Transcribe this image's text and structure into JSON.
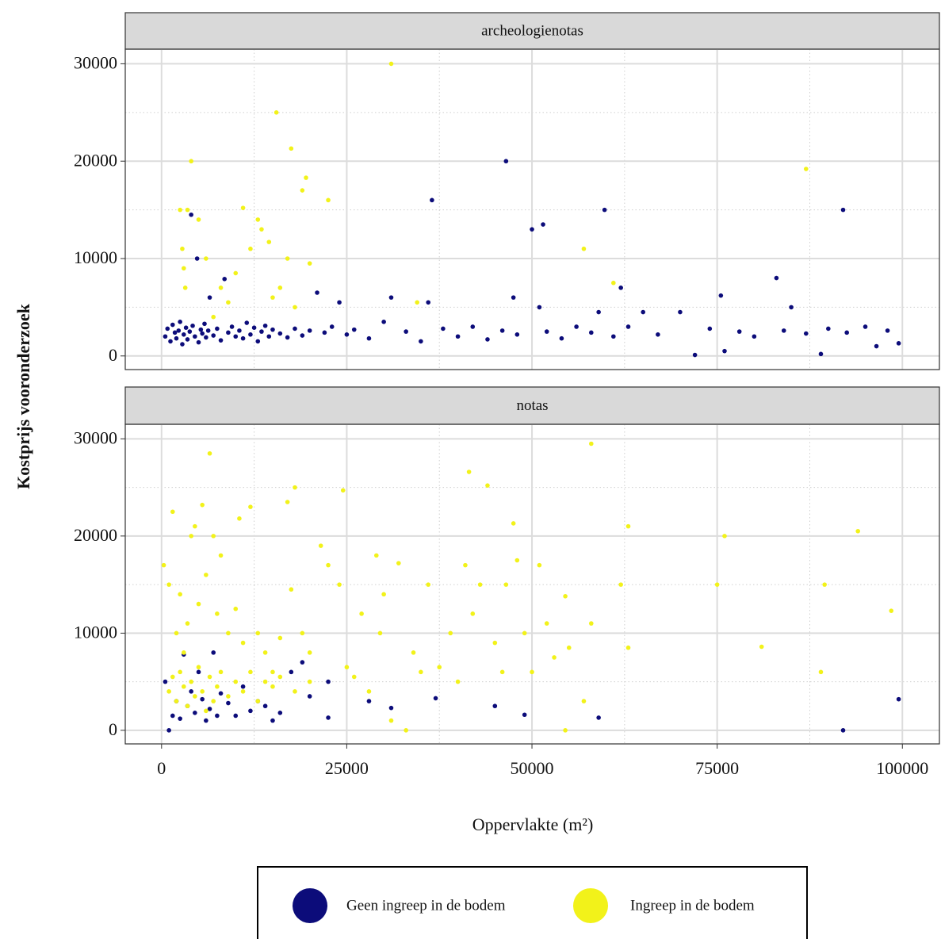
{
  "chart_data": [
    {
      "type": "scatter",
      "title": "archeologienotas",
      "ylabel": "Kostprijs vooronderzoek",
      "xlim": [
        -4900,
        105000
      ],
      "xticks": [
        0,
        25000,
        50000,
        75000,
        100000
      ],
      "ylim": [
        -1400,
        31500
      ],
      "yticks": [
        0,
        10000,
        20000,
        30000
      ],
      "grid": true,
      "minor_grid": true,
      "series": [
        {
          "name": "Geen ingreep in de bodem",
          "color": "#0c0c7a",
          "x": [
            500,
            800,
            1200,
            1500,
            1800,
            2000,
            2300,
            2500,
            2800,
            3000,
            3300,
            3500,
            3800,
            4000,
            4200,
            4500,
            4800,
            5000,
            5300,
            5500,
            5800,
            6000,
            6300,
            6500,
            7000,
            7500,
            8000,
            8500,
            9000,
            9500,
            10000,
            10500,
            11000,
            11500,
            12000,
            12500,
            13000,
            13500,
            14000,
            14500,
            15000,
            16000,
            17000,
            18000,
            19000,
            20000,
            21000,
            22000,
            23000,
            24000,
            25000,
            26000,
            28000,
            30000,
            31000,
            33000,
            35000,
            36500,
            36000,
            38000,
            40000,
            42000,
            44000,
            46000,
            46500,
            47500,
            48000,
            50000,
            51000,
            51500,
            52000,
            54000,
            56000,
            58000,
            59000,
            59800,
            62000,
            61000,
            63000,
            65000,
            67000,
            70000,
            72000,
            74000,
            75500,
            76000,
            78000,
            80000,
            83000,
            84000,
            85000,
            87000,
            89000,
            90000,
            92000,
            92500,
            95000,
            96500,
            98000,
            99500
          ],
          "values": [
            2000,
            2800,
            1500,
            3200,
            2400,
            1800,
            2600,
            3500,
            1200,
            2200,
            2900,
            1700,
            2500,
            14500,
            3100,
            2000,
            10000,
            1400,
            2700,
            2300,
            3300,
            1900,
            2600,
            6000,
            2100,
            2800,
            1600,
            7900,
            2400,
            3000,
            2000,
            2600,
            1800,
            3400,
            2200,
            2900,
            1500,
            2500,
            3100,
            2000,
            2700,
            2300,
            1900,
            2800,
            2100,
            2600,
            6500,
            2400,
            3000,
            5500,
            2200,
            2700,
            1800,
            3500,
            6000,
            2500,
            1500,
            16000,
            5500,
            2800,
            2000,
            3000,
            1700,
            2600,
            20000,
            6000,
            2200,
            13000,
            5000,
            13500,
            2500,
            1800,
            3000,
            2400,
            4500,
            15000,
            7000,
            2000,
            3000,
            4500,
            2200,
            4500,
            100,
            2800,
            6200,
            500,
            2500,
            2000,
            8000,
            2600,
            5000,
            2300,
            200,
            2800,
            15000,
            2400,
            3000,
            1000,
            2600,
            1300
          ]
        },
        {
          "name": "Ingreep in de bodem",
          "color": "#f2f21a",
          "x": [
            2500,
            3500,
            4000,
            2800,
            3000,
            5000,
            6000,
            8000,
            10000,
            11000,
            12000,
            13000,
            13500,
            14500,
            15500,
            17000,
            17500,
            19000,
            19500,
            20000,
            22500,
            15000,
            16000,
            18000,
            31000,
            34500,
            57000,
            61000,
            87000,
            9000,
            7000,
            3200
          ],
          "values": [
            15000,
            15000,
            20000,
            11000,
            9000,
            14000,
            10000,
            7000,
            8500,
            15200,
            11000,
            14000,
            13000,
            11700,
            25000,
            10000,
            21300,
            17000,
            18300,
            9500,
            16000,
            6000,
            7000,
            5000,
            30000,
            5500,
            11000,
            7500,
            19200,
            5500,
            4000,
            7000
          ]
        }
      ]
    },
    {
      "type": "scatter",
      "title": "notas",
      "xlabel": "Oppervlakte (m²)",
      "xlim": [
        -4900,
        105000
      ],
      "xticks": [
        0,
        25000,
        50000,
        75000,
        100000
      ],
      "ylim": [
        -1400,
        31500
      ],
      "yticks": [
        0,
        10000,
        20000,
        30000
      ],
      "grid": true,
      "minor_grid": true,
      "series": [
        {
          "color": "#0c0c7a",
          "x": [
            500,
            1000,
            1500,
            2000,
            2500,
            3000,
            3500,
            4000,
            4500,
            5000,
            5500,
            6000,
            6500,
            7000,
            7500,
            8000,
            9000,
            10000,
            11000,
            12000,
            13000,
            14000,
            15000,
            16000,
            17500,
            19000,
            20000,
            22500,
            22500,
            28000,
            31000,
            37000,
            45000,
            49000,
            59000,
            92000,
            99500
          ],
          "values": [
            5000,
            0,
            1500,
            3000,
            1200,
            7800,
            2500,
            4000,
            1800,
            6000,
            3200,
            1000,
            2200,
            8000,
            1500,
            3800,
            2800,
            1500,
            4500,
            2000,
            3000,
            2500,
            1000,
            1800,
            6000,
            7000,
            3500,
            1300,
            5000,
            3000,
            2300,
            3300,
            2500,
            1600,
            1300,
            0,
            3200
          ]
        },
        {
          "color": "#f2f21a",
          "x": [
            300,
            1000,
            1500,
            2000,
            2500,
            3000,
            3500,
            4000,
            4500,
            5000,
            5500,
            6000,
            6500,
            7000,
            7500,
            8000,
            9000,
            10000,
            10500,
            11000,
            12000,
            13000,
            14000,
            15000,
            16000,
            17000,
            17500,
            18000,
            19000,
            20000,
            21500,
            22500,
            24500,
            24000,
            25000,
            26000,
            27000,
            28000,
            29000,
            29500,
            30000,
            31000,
            32000,
            33000,
            34000,
            35000,
            36000,
            37500,
            39000,
            40000,
            41000,
            41500,
            42000,
            43000,
            44000,
            45000,
            46000,
            46500,
            47500,
            48000,
            49000,
            50000,
            51000,
            52000,
            53000,
            54500,
            54500,
            55000,
            57000,
            58000,
            58000,
            62000,
            63000,
            63000,
            75000,
            76000,
            81000,
            89000,
            89500,
            94000,
            98500,
            1000,
            1500,
            2000,
            2500,
            3000,
            3500,
            4000,
            4500,
            5000,
            5500,
            6000,
            6500,
            7000,
            7500,
            8000,
            9000,
            10000,
            11000,
            12000,
            13000,
            14000,
            15000,
            16000,
            18000,
            20000
          ],
          "values": [
            17000,
            15000,
            22500,
            10000,
            14000,
            8000,
            11000,
            20000,
            21000,
            13000,
            23200,
            16000,
            28500,
            20000,
            12000,
            18000,
            10000,
            12500,
            21800,
            9000,
            23000,
            10000,
            8000,
            6000,
            9500,
            23500,
            14500,
            25000,
            10000,
            8000,
            19000,
            17000,
            24700,
            15000,
            6500,
            5500,
            12000,
            4000,
            18000,
            10000,
            14000,
            1000,
            17200,
            0,
            8000,
            6000,
            15000,
            6500,
            10000,
            5000,
            17000,
            26600,
            12000,
            15000,
            25200,
            9000,
            6000,
            15000,
            21300,
            17500,
            10000,
            6000,
            17000,
            11000,
            7500,
            13800,
            0,
            8500,
            3000,
            29500,
            11000,
            15000,
            21000,
            8500,
            15000,
            20000,
            8600,
            6000,
            15000,
            20500,
            12300,
            4000,
            5500,
            3000,
            6000,
            4500,
            2500,
            5000,
            3500,
            6500,
            4000,
            2000,
            5500,
            3000,
            4500,
            6000,
            3500,
            5000,
            4000,
            6000,
            3000,
            5000,
            4500,
            5500,
            4000,
            5000
          ]
        }
      ]
    }
  ]
}
